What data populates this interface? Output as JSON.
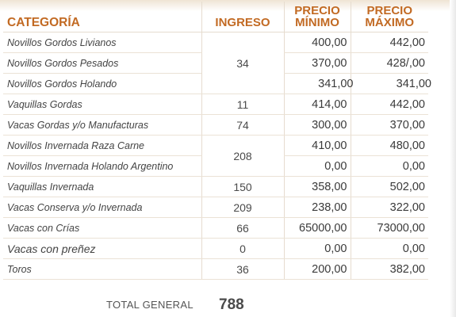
{
  "headers": {
    "categoria": "CATEGORÍA",
    "ingreso": "INGRESO",
    "precio_min_1": "PRECIO",
    "precio_min_2": "MÍNIMO",
    "precio_max_1": "PRECIO",
    "precio_max_2": "MÁXIMO"
  },
  "rows": [
    {
      "categoria": "Novillos Gordos Livianos",
      "min": "400,00",
      "max": "442,00"
    },
    {
      "categoria": "Novillos Gordos Pesados",
      "min": "370,00",
      "max": "428/,00"
    },
    {
      "categoria": "Novillos Gordos Holando",
      "min": "341,00",
      "max": "341,00"
    },
    {
      "categoria": "Vaquillas Gordas",
      "ingreso": "11",
      "min": "414,00",
      "max": "442,00"
    },
    {
      "categoria": "Vacas Gordas y/o Manufacturas",
      "ingreso": "74",
      "min": "300,00",
      "max": "370,00"
    },
    {
      "categoria": "Novillos Invernada Raza Carne",
      "min": "410,00",
      "max": "480,00"
    },
    {
      "categoria": "Novillos Invernada Holando Argentino",
      "min": "0,00",
      "max": "0,00"
    },
    {
      "categoria": "Vaquillas Invernada",
      "ingreso": "150",
      "min": "358,00",
      "max": "502,00"
    },
    {
      "categoria": "Vacas Conserva y/o Invernada",
      "ingreso": "209",
      "min": "238,00",
      "max": "322,00"
    },
    {
      "categoria": "Vacas con Crías",
      "ingreso": "66",
      "min": "65000,00",
      "max": "73000,00"
    },
    {
      "categoria": "Vacas con preñez",
      "ingreso": "0",
      "min": "0,00",
      "max": "0,00"
    },
    {
      "categoria": "Toros",
      "ingreso": "36",
      "min": "200,00",
      "max": "382,00"
    }
  ],
  "group_ingreso": {
    "novillos_gordos": "34",
    "novillos_invernada": "208"
  },
  "total": {
    "label": "TOTAL GENERAL",
    "value": "788"
  }
}
